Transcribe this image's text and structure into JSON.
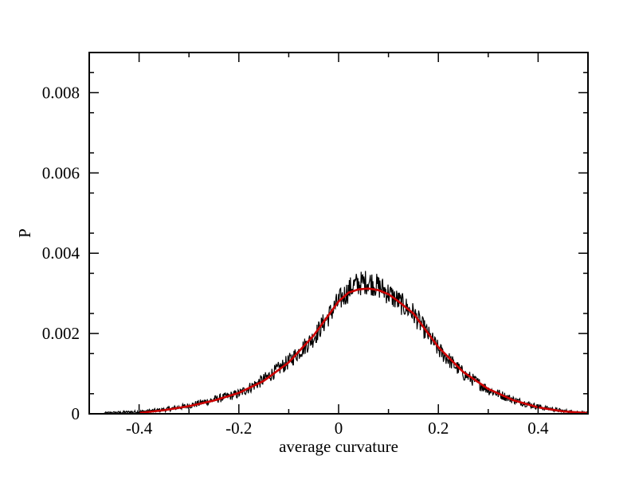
{
  "chart_data": {
    "type": "line",
    "title": "",
    "xlabel": "average curvature",
    "ylabel": "P",
    "xlim": [
      -0.5,
      0.5
    ],
    "ylim": [
      0,
      0.009
    ],
    "x_ticks": [
      -0.4,
      -0.2,
      0,
      0.2,
      0.4
    ],
    "x_tick_labels": [
      "-0.4",
      "-0.2",
      "0",
      "0.2",
      "0.4"
    ],
    "y_ticks": [
      0,
      0.002,
      0.004,
      0.006,
      0.008
    ],
    "y_tick_labels": [
      "0",
      "0.002",
      "0.004",
      "0.006",
      "0.008"
    ],
    "grid": false,
    "legend": "none",
    "series": [
      {
        "style": "noisy histogram",
        "color": "#000000",
        "x": [
          -0.47,
          -0.45,
          -0.4,
          -0.35,
          -0.3,
          -0.25,
          -0.2,
          -0.15,
          -0.1,
          -0.05,
          0.0,
          0.03,
          0.06,
          0.09,
          0.12,
          0.15,
          0.2,
          0.25,
          0.3,
          0.35,
          0.4,
          0.45,
          0.5
        ],
        "y": [
          2e-05,
          3e-05,
          5e-05,
          0.0001,
          0.0002,
          0.00035,
          0.0005,
          0.00085,
          0.0013,
          0.0019,
          0.0028,
          0.0032,
          0.0033,
          0.0031,
          0.0028,
          0.0025,
          0.0016,
          0.001,
          0.0006,
          0.00035,
          0.00017,
          7e-05,
          2e-05
        ]
      },
      {
        "style": "smooth fit",
        "color": "#cc0000",
        "x": [
          -0.4,
          -0.35,
          -0.3,
          -0.25,
          -0.2,
          -0.15,
          -0.1,
          -0.05,
          0.0,
          0.02,
          0.04,
          0.06,
          0.08,
          0.1,
          0.12,
          0.15,
          0.2,
          0.25,
          0.3,
          0.35,
          0.4,
          0.45,
          0.5
        ],
        "y": [
          2e-05,
          9e-05,
          0.00019,
          0.00033,
          0.00052,
          0.00082,
          0.00128,
          0.00195,
          0.0028,
          0.00302,
          0.0031,
          0.00312,
          0.00308,
          0.00298,
          0.0028,
          0.0025,
          0.00166,
          0.00104,
          0.00062,
          0.00034,
          0.00016,
          6e-05,
          2e-05
        ]
      }
    ]
  }
}
